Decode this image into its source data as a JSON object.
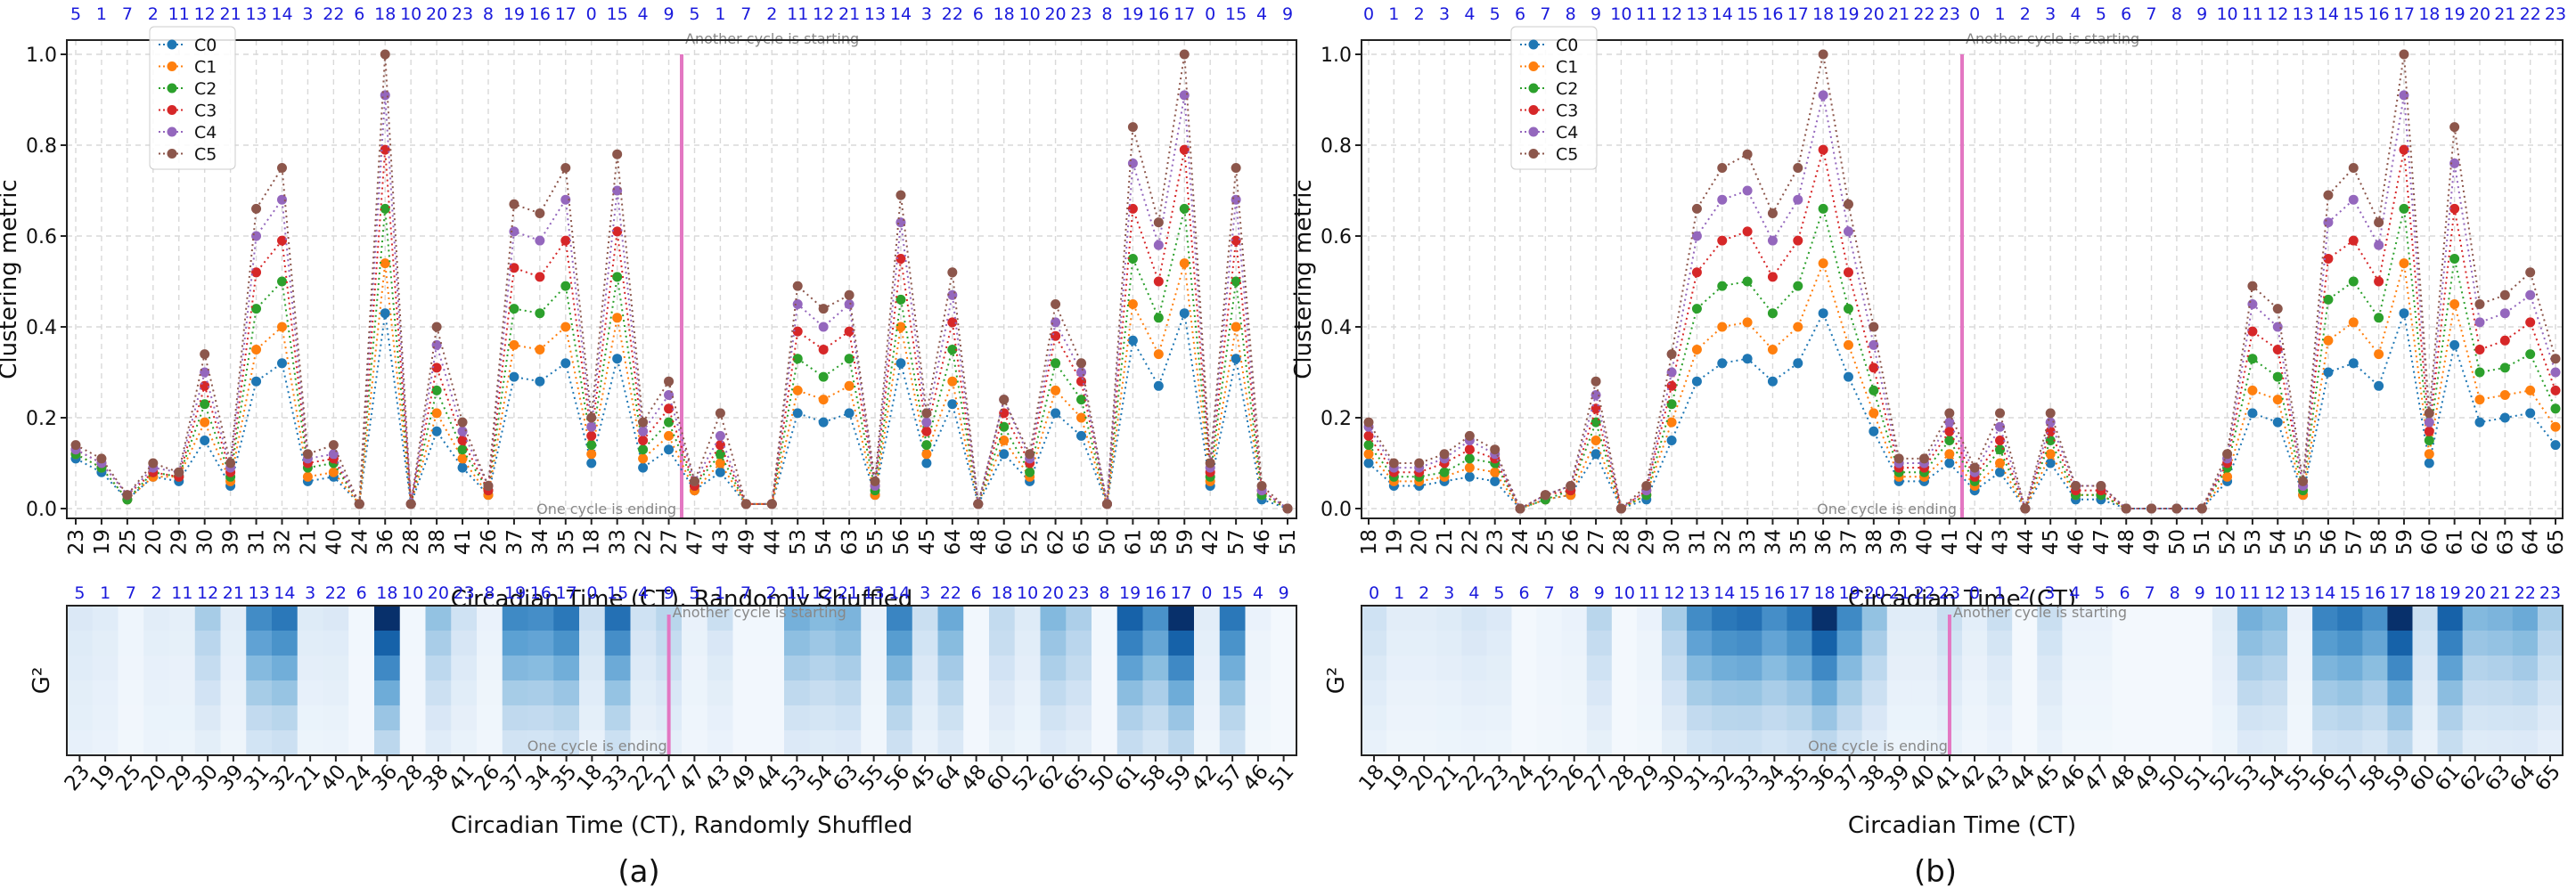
{
  "chart_data": [
    {
      "id": "a",
      "type": "line",
      "caption": "(a)",
      "ylabel": "Clustering metric",
      "xlabel": "Circadian Time (CT), Randomly Shuffled",
      "ylim": [
        0,
        1.0
      ],
      "yticks": [
        "0.0",
        "0.2",
        "0.4",
        "0.6",
        "0.8",
        "1.0"
      ],
      "grid": true,
      "legend_position": "top-left",
      "x_labels": [
        "23",
        "19",
        "25",
        "20",
        "29",
        "30",
        "39",
        "31",
        "32",
        "21",
        "40",
        "24",
        "36",
        "28",
        "38",
        "41",
        "26",
        "37",
        "34",
        "35",
        "18",
        "33",
        "22",
        "27",
        "47",
        "43",
        "49",
        "44",
        "53",
        "54",
        "63",
        "55",
        "56",
        "45",
        "64",
        "48",
        "60",
        "52",
        "62",
        "65",
        "50",
        "61",
        "58",
        "59",
        "42",
        "57",
        "46",
        "51"
      ],
      "top_labels": [
        "5",
        "1",
        "7",
        "2",
        "11",
        "12",
        "21",
        "13",
        "14",
        "3",
        "22",
        "6",
        "18",
        "10",
        "20",
        "23",
        "8",
        "19",
        "16",
        "17",
        "0",
        "15",
        "4",
        "9",
        "5",
        "1",
        "7",
        "2",
        "11",
        "12",
        "21",
        "13",
        "14",
        "3",
        "22",
        "6",
        "18",
        "10",
        "20",
        "23",
        "8",
        "19",
        "16",
        "17",
        "0",
        "15",
        "4",
        "9"
      ],
      "annotations": {
        "cycle_start": "Another cycle is starting",
        "cycle_end": "One cycle is ending"
      },
      "series": [
        {
          "name": "C0",
          "values": [
            0.11,
            0.08,
            0.02,
            0.07,
            0.06,
            0.15,
            0.05,
            0.28,
            0.32,
            0.06,
            0.07,
            0.01,
            0.43,
            0.01,
            0.17,
            0.09,
            0.03,
            0.29,
            0.28,
            0.32,
            0.1,
            0.33,
            0.09,
            0.13,
            0.04,
            0.08,
            0.01,
            0.01,
            0.21,
            0.19,
            0.21,
            0.03,
            0.32,
            0.1,
            0.23,
            0.01,
            0.12,
            0.06,
            0.21,
            0.16,
            0.01,
            0.37,
            0.27,
            0.43,
            0.05,
            0.33,
            0.02,
            0.0
          ]
        },
        {
          "name": "C1",
          "values": [
            0.12,
            0.09,
            0.02,
            0.07,
            0.07,
            0.19,
            0.06,
            0.35,
            0.4,
            0.07,
            0.08,
            0.01,
            0.54,
            0.01,
            0.21,
            0.11,
            0.03,
            0.36,
            0.35,
            0.4,
            0.12,
            0.42,
            0.11,
            0.16,
            0.04,
            0.1,
            0.01,
            0.01,
            0.26,
            0.24,
            0.27,
            0.03,
            0.4,
            0.12,
            0.28,
            0.01,
            0.15,
            0.07,
            0.26,
            0.2,
            0.01,
            0.45,
            0.34,
            0.54,
            0.06,
            0.4,
            0.03,
            0.0
          ]
        },
        {
          "name": "C2",
          "values": [
            0.12,
            0.09,
            0.02,
            0.08,
            0.07,
            0.23,
            0.07,
            0.44,
            0.5,
            0.09,
            0.1,
            0.01,
            0.66,
            0.01,
            0.26,
            0.13,
            0.04,
            0.44,
            0.43,
            0.49,
            0.14,
            0.51,
            0.13,
            0.19,
            0.05,
            0.12,
            0.01,
            0.01,
            0.33,
            0.29,
            0.33,
            0.04,
            0.46,
            0.14,
            0.35,
            0.01,
            0.18,
            0.08,
            0.32,
            0.24,
            0.01,
            0.55,
            0.42,
            0.66,
            0.07,
            0.5,
            0.03,
            0.0
          ]
        },
        {
          "name": "C3",
          "values": [
            0.13,
            0.1,
            0.03,
            0.08,
            0.07,
            0.27,
            0.08,
            0.52,
            0.59,
            0.1,
            0.11,
            0.01,
            0.79,
            0.01,
            0.31,
            0.15,
            0.04,
            0.53,
            0.51,
            0.59,
            0.16,
            0.61,
            0.15,
            0.22,
            0.05,
            0.14,
            0.01,
            0.01,
            0.39,
            0.35,
            0.39,
            0.05,
            0.55,
            0.17,
            0.41,
            0.01,
            0.21,
            0.1,
            0.38,
            0.28,
            0.01,
            0.66,
            0.5,
            0.79,
            0.08,
            0.59,
            0.04,
            0.0
          ]
        },
        {
          "name": "C4",
          "values": [
            0.13,
            0.1,
            0.03,
            0.09,
            0.08,
            0.3,
            0.09,
            0.6,
            0.68,
            0.11,
            0.12,
            0.01,
            0.91,
            0.01,
            0.36,
            0.17,
            0.05,
            0.61,
            0.59,
            0.68,
            0.18,
            0.7,
            0.17,
            0.25,
            0.06,
            0.16,
            0.01,
            0.01,
            0.45,
            0.4,
            0.45,
            0.05,
            0.63,
            0.19,
            0.47,
            0.01,
            0.24,
            0.11,
            0.41,
            0.3,
            0.01,
            0.76,
            0.58,
            0.91,
            0.09,
            0.68,
            0.04,
            0.0
          ]
        },
        {
          "name": "C5",
          "values": [
            0.14,
            0.11,
            0.03,
            0.1,
            0.08,
            0.34,
            0.1,
            0.66,
            0.75,
            0.12,
            0.14,
            0.01,
            1.0,
            0.01,
            0.4,
            0.19,
            0.05,
            0.67,
            0.65,
            0.75,
            0.2,
            0.78,
            0.19,
            0.28,
            0.06,
            0.21,
            0.01,
            0.01,
            0.49,
            0.44,
            0.47,
            0.06,
            0.69,
            0.21,
            0.52,
            0.01,
            0.24,
            0.12,
            0.45,
            0.32,
            0.01,
            0.84,
            0.63,
            1.0,
            0.1,
            0.75,
            0.05,
            0.0
          ]
        }
      ],
      "heatmap": {
        "ylabel": "G²",
        "xlabel": "Circadian Time (CT), Randomly Shuffled",
        "top_labels": [
          "5",
          "1",
          "7",
          "2",
          "11",
          "12",
          "21",
          "13",
          "14",
          "3",
          "22",
          "6",
          "18",
          "10",
          "20",
          "23",
          "8",
          "19",
          "16",
          "17",
          "0",
          "15",
          "4",
          "9",
          "5",
          "1",
          "7",
          "2",
          "11",
          "12",
          "21",
          "13",
          "14",
          "3",
          "22",
          "6",
          "18",
          "10",
          "20",
          "23",
          "8",
          "19",
          "16",
          "17",
          "0",
          "15",
          "4",
          "9"
        ],
        "x_labels": [
          "23",
          "19",
          "25",
          "20",
          "29",
          "30",
          "39",
          "31",
          "32",
          "21",
          "40",
          "24",
          "36",
          "28",
          "38",
          "41",
          "26",
          "37",
          "34",
          "35",
          "18",
          "33",
          "22",
          "27",
          "47",
          "43",
          "49",
          "44",
          "53",
          "54",
          "63",
          "55",
          "56",
          "45",
          "64",
          "48",
          "60",
          "52",
          "62",
          "65",
          "50",
          "61",
          "58",
          "59",
          "42",
          "57",
          "46",
          "51"
        ]
      }
    },
    {
      "id": "b",
      "type": "line",
      "caption": "(b)",
      "ylabel": "Clustering metric",
      "xlabel": "Circadian Time (CT)",
      "ylim": [
        0,
        1.0
      ],
      "yticks": [
        "0.0",
        "0.2",
        "0.4",
        "0.6",
        "0.8",
        "1.0"
      ],
      "grid": true,
      "legend_position": "top-left",
      "x_labels": [
        "18",
        "19",
        "20",
        "21",
        "22",
        "23",
        "24",
        "25",
        "26",
        "27",
        "28",
        "29",
        "30",
        "31",
        "32",
        "33",
        "34",
        "35",
        "36",
        "37",
        "38",
        "39",
        "40",
        "41",
        "42",
        "43",
        "44",
        "45",
        "46",
        "47",
        "48",
        "49",
        "50",
        "51",
        "52",
        "53",
        "54",
        "55",
        "56",
        "57",
        "58",
        "59",
        "60",
        "61",
        "62",
        "63",
        "64",
        "65"
      ],
      "top_labels": [
        "0",
        "1",
        "2",
        "3",
        "4",
        "5",
        "6",
        "7",
        "8",
        "9",
        "10",
        "11",
        "12",
        "13",
        "14",
        "15",
        "16",
        "17",
        "18",
        "19",
        "20",
        "21",
        "22",
        "23",
        "0",
        "1",
        "2",
        "3",
        "4",
        "5",
        "6",
        "7",
        "8",
        "9",
        "10",
        "11",
        "12",
        "13",
        "14",
        "15",
        "16",
        "17",
        "18",
        "19",
        "20",
        "21",
        "22",
        "23"
      ],
      "annotations": {
        "cycle_start": "Another cycle is starting",
        "cycle_end": "One cycle is ending"
      },
      "series": [
        {
          "name": "C0",
          "values": [
            0.1,
            0.05,
            0.05,
            0.06,
            0.07,
            0.06,
            0.0,
            0.02,
            0.03,
            0.12,
            0.0,
            0.02,
            0.15,
            0.28,
            0.32,
            0.33,
            0.28,
            0.32,
            0.43,
            0.29,
            0.17,
            0.06,
            0.06,
            0.1,
            0.04,
            0.08,
            0.0,
            0.1,
            0.02,
            0.02,
            0.0,
            0.0,
            0.0,
            0.0,
            0.06,
            0.21,
            0.19,
            0.03,
            0.3,
            0.32,
            0.27,
            0.43,
            0.1,
            0.36,
            0.19,
            0.2,
            0.21,
            0.14
          ]
        },
        {
          "name": "C1",
          "values": [
            0.12,
            0.06,
            0.06,
            0.07,
            0.09,
            0.08,
            0.0,
            0.02,
            0.03,
            0.15,
            0.0,
            0.03,
            0.19,
            0.35,
            0.4,
            0.41,
            0.35,
            0.4,
            0.54,
            0.36,
            0.21,
            0.07,
            0.07,
            0.12,
            0.05,
            0.1,
            0.0,
            0.12,
            0.03,
            0.03,
            0.0,
            0.0,
            0.0,
            0.0,
            0.07,
            0.26,
            0.24,
            0.03,
            0.37,
            0.41,
            0.34,
            0.54,
            0.12,
            0.45,
            0.24,
            0.25,
            0.26,
            0.18
          ]
        },
        {
          "name": "C2",
          "values": [
            0.14,
            0.07,
            0.07,
            0.08,
            0.11,
            0.1,
            0.0,
            0.02,
            0.04,
            0.19,
            0.0,
            0.03,
            0.23,
            0.44,
            0.49,
            0.5,
            0.43,
            0.49,
            0.66,
            0.44,
            0.26,
            0.08,
            0.08,
            0.15,
            0.06,
            0.13,
            0.0,
            0.15,
            0.03,
            0.03,
            0.0,
            0.0,
            0.0,
            0.0,
            0.09,
            0.33,
            0.29,
            0.04,
            0.46,
            0.5,
            0.42,
            0.66,
            0.15,
            0.55,
            0.3,
            0.31,
            0.34,
            0.22
          ]
        },
        {
          "name": "C3",
          "values": [
            0.16,
            0.08,
            0.08,
            0.1,
            0.13,
            0.11,
            0.0,
            0.03,
            0.04,
            0.22,
            0.0,
            0.04,
            0.27,
            0.52,
            0.59,
            0.61,
            0.51,
            0.59,
            0.79,
            0.52,
            0.31,
            0.09,
            0.09,
            0.17,
            0.07,
            0.15,
            0.0,
            0.17,
            0.04,
            0.04,
            0.0,
            0.0,
            0.0,
            0.0,
            0.1,
            0.39,
            0.35,
            0.05,
            0.55,
            0.59,
            0.5,
            0.79,
            0.17,
            0.66,
            0.35,
            0.37,
            0.41,
            0.26
          ]
        },
        {
          "name": "C4",
          "values": [
            0.18,
            0.09,
            0.09,
            0.11,
            0.15,
            0.12,
            0.0,
            0.03,
            0.05,
            0.25,
            0.0,
            0.04,
            0.3,
            0.6,
            0.68,
            0.7,
            0.59,
            0.68,
            0.91,
            0.61,
            0.36,
            0.1,
            0.1,
            0.19,
            0.08,
            0.18,
            0.0,
            0.19,
            0.05,
            0.05,
            0.0,
            0.0,
            0.0,
            0.0,
            0.11,
            0.45,
            0.4,
            0.05,
            0.63,
            0.68,
            0.58,
            0.91,
            0.19,
            0.76,
            0.41,
            0.43,
            0.47,
            0.3
          ]
        },
        {
          "name": "C5",
          "values": [
            0.19,
            0.1,
            0.1,
            0.12,
            0.16,
            0.13,
            0.0,
            0.03,
            0.05,
            0.28,
            0.0,
            0.05,
            0.34,
            0.66,
            0.75,
            0.78,
            0.65,
            0.75,
            1.0,
            0.67,
            0.4,
            0.11,
            0.11,
            0.21,
            0.09,
            0.21,
            0.0,
            0.21,
            0.05,
            0.05,
            0.0,
            0.0,
            0.0,
            0.0,
            0.12,
            0.49,
            0.44,
            0.06,
            0.69,
            0.75,
            0.63,
            1.0,
            0.21,
            0.84,
            0.45,
            0.47,
            0.52,
            0.33
          ]
        }
      ],
      "heatmap": {
        "ylabel": "G²",
        "xlabel": "Circadian Time (CT)",
        "top_labels": [
          "0",
          "1",
          "2",
          "3",
          "4",
          "5",
          "6",
          "7",
          "8",
          "9",
          "10",
          "11",
          "12",
          "13",
          "14",
          "15",
          "16",
          "17",
          "18",
          "19",
          "20",
          "21",
          "22",
          "23",
          "0",
          "1",
          "2",
          "3",
          "4",
          "5",
          "6",
          "7",
          "8",
          "9",
          "10",
          "11",
          "12",
          "13",
          "14",
          "15",
          "16",
          "17",
          "18",
          "19",
          "20",
          "21",
          "22",
          "23"
        ],
        "x_labels": [
          "18",
          "19",
          "20",
          "21",
          "22",
          "23",
          "24",
          "25",
          "26",
          "27",
          "28",
          "29",
          "30",
          "31",
          "32",
          "33",
          "34",
          "35",
          "36",
          "37",
          "38",
          "39",
          "40",
          "41",
          "42",
          "43",
          "44",
          "45",
          "46",
          "47",
          "48",
          "49",
          "50",
          "51",
          "52",
          "53",
          "54",
          "55",
          "56",
          "57",
          "58",
          "59",
          "60",
          "61",
          "62",
          "63",
          "64",
          "65"
        ]
      }
    }
  ],
  "colors": {
    "C0": "#1f77b4",
    "C1": "#ff7f0e",
    "C2": "#2ca02c",
    "C3": "#d62728",
    "C4": "#9467bd",
    "C5": "#8c564b",
    "marker": "#e377c2",
    "top_label": "#1a1adc"
  }
}
